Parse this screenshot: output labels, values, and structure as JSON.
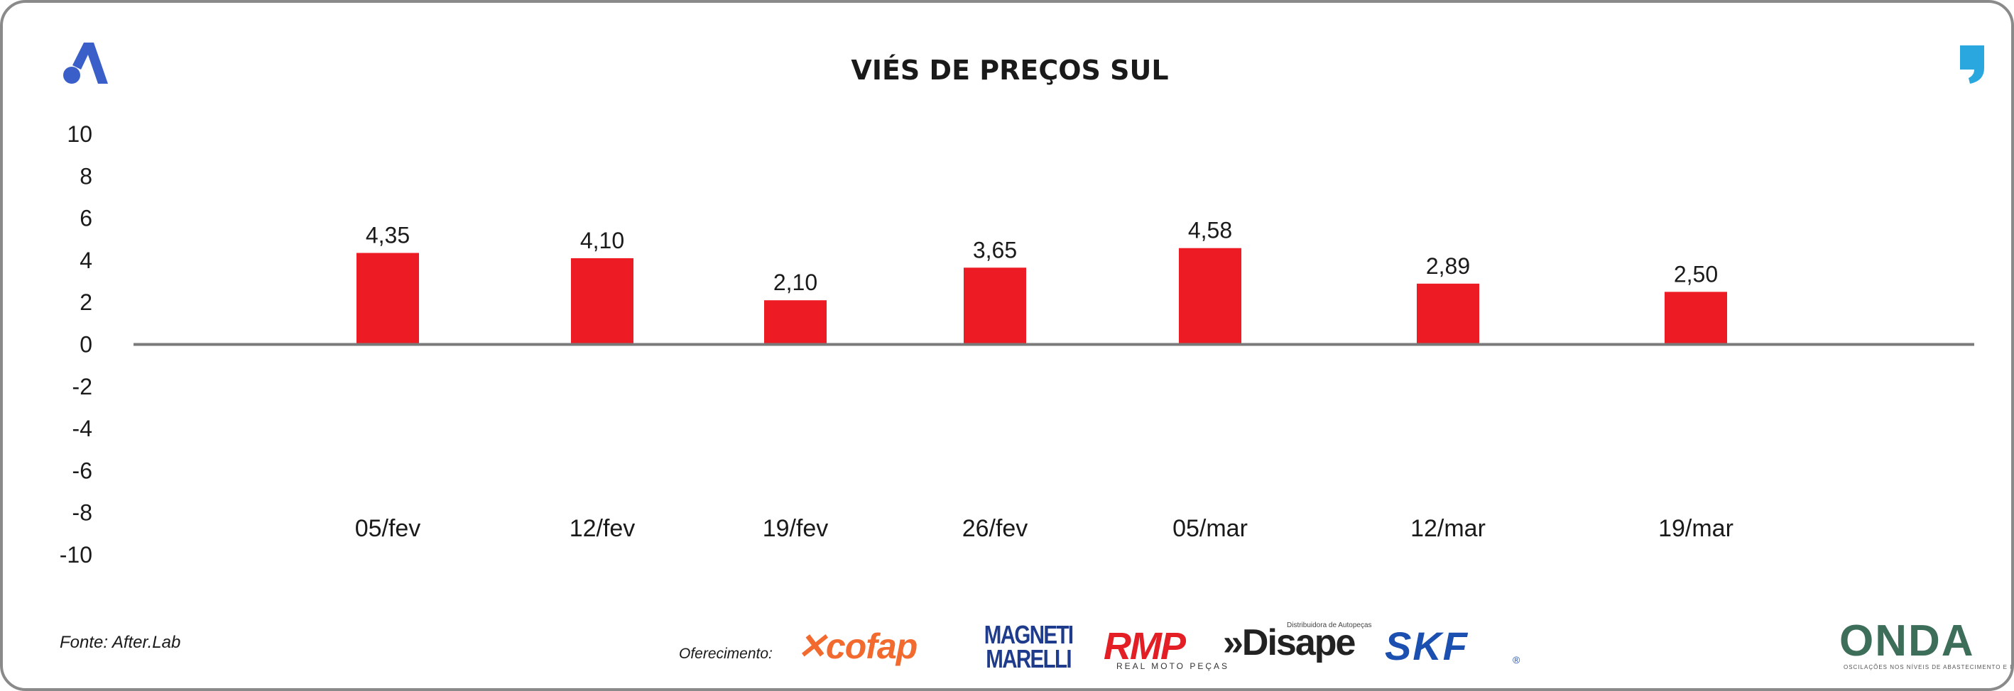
{
  "chart_data": {
    "type": "bar",
    "title": "VIÉS DE PREÇOS SUL",
    "categories": [
      "05/fev",
      "12/fev",
      "19/fev",
      "26/fev",
      "05/mar",
      "12/mar",
      "19/mar"
    ],
    "values": [
      4.35,
      4.1,
      2.1,
      3.65,
      4.58,
      2.89,
      2.5
    ],
    "value_labels": [
      "4,35",
      "4,10",
      "2,10",
      "3,65",
      "4,58",
      "2,89",
      "2,50"
    ],
    "ylim": [
      -10,
      10
    ],
    "yticks": [
      10,
      8,
      6,
      4,
      2,
      0,
      -2,
      -4,
      -6,
      -8,
      -10
    ],
    "grid": false,
    "legend": "none",
    "bar_color": "#ed1c24"
  },
  "footer": {
    "source": "Fonte: After.Lab",
    "offer_label": "Oferecimento:"
  },
  "logos": {
    "left_icon": "a-brand-icon",
    "right_icon": "quote-mark-icon",
    "left_icon_color": "#3a5fc8",
    "right_icon_color": "#2aa7de",
    "sponsors": {
      "cofap": "cofap",
      "magneti": "MAGNETI MARELLI",
      "rmp": "RMP",
      "rmp_sub": "REAL MOTO PEÇAS",
      "disape": "»Disape",
      "disape_sub": "Distribuidora de Autopeças",
      "skf": "SKF",
      "skf_reg": "®"
    },
    "onda": "ONDA",
    "onda_sub": "OSCILAÇÕES NOS NÍVEIS DE ABASTECIMENTO E PREÇO"
  }
}
